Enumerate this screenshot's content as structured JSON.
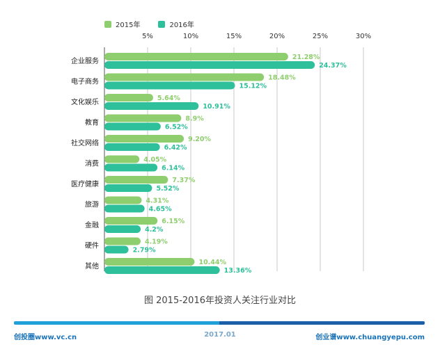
{
  "colors": {
    "s2015": "#8fce6e",
    "s2016": "#2ebf9b",
    "grid": "#c8c8c8",
    "axis": "#555555",
    "label2015": "#8fce6e",
    "label2016": "#2ebf9b",
    "footer_left": "#1fa0d8",
    "footer_right": "#1a5fa8"
  },
  "legend": {
    "s2015": "2015年",
    "s2016": "2016年"
  },
  "chart_data": {
    "type": "bar",
    "orientation": "horizontal",
    "categories": [
      "企业服务",
      "电子商务",
      "文化娱乐",
      "教育",
      "社交网络",
      "消费",
      "医疗健康",
      "旅游",
      "金融",
      "硬件",
      "其他"
    ],
    "series": [
      {
        "name": "2015年",
        "values": [
          21.28,
          18.48,
          5.64,
          8.9,
          9.2,
          4.05,
          7.37,
          4.31,
          6.15,
          4.19,
          10.44
        ],
        "labels": [
          "21.28%",
          "18.48%",
          "5.64%",
          "8.9%",
          "9.20%",
          "4.05%",
          "7.37%",
          "4.31%",
          "6.15%",
          "4.19%",
          "10.44%"
        ]
      },
      {
        "name": "2016年",
        "values": [
          24.37,
          15.12,
          10.91,
          6.52,
          6.42,
          6.14,
          5.52,
          4.65,
          4.2,
          2.79,
          13.36
        ],
        "labels": [
          "24.37%",
          "15.12%",
          "10.91%",
          "6.52%",
          "6.42%",
          "6.14%",
          "5.52%",
          "4.65%",
          "4.2%",
          "2.79%",
          "13.36%"
        ]
      }
    ],
    "xticks": [
      "5%",
      "10%",
      "15%",
      "20%",
      "25%",
      "30%"
    ],
    "xtick_values": [
      5,
      10,
      15,
      20,
      25,
      30
    ],
    "xlim": [
      0,
      32
    ],
    "grid": true,
    "legend_position": "top-left",
    "title": "图 2015-2016年投资人关注行业对比"
  },
  "footer": {
    "left": "创投圈www.vc.cn",
    "middle": "2017.01",
    "right": "创业谱www.chuangyepu.com"
  }
}
